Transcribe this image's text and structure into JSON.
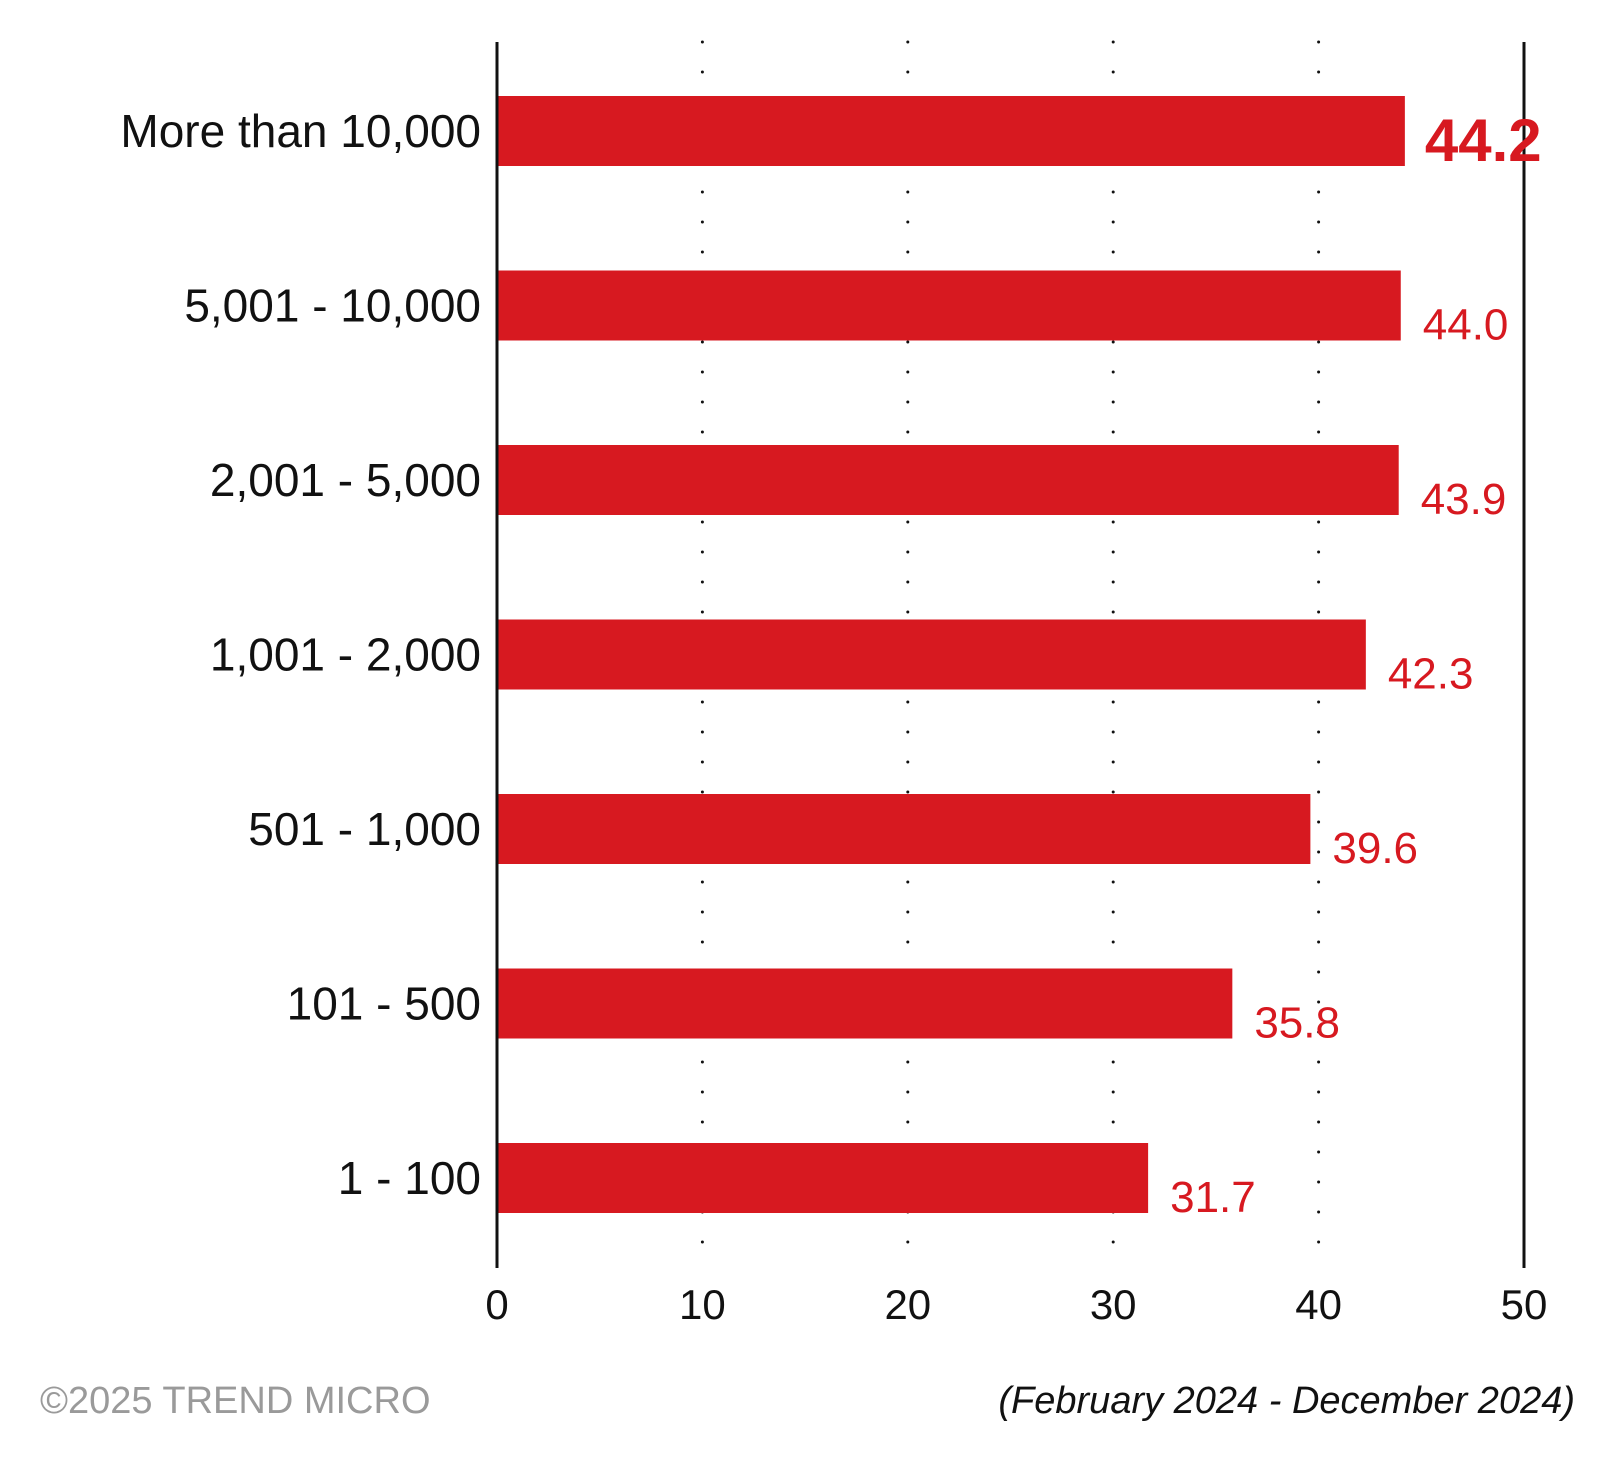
{
  "chart_data": {
    "type": "bar",
    "orientation": "horizontal",
    "categories": [
      "More than 10,000",
      "5,001 - 10,000",
      "2,001 - 5,000",
      "1,001 - 2,000",
      "501 - 1,000",
      "101 - 500",
      "1 - 100"
    ],
    "values": [
      44.2,
      44.0,
      43.9,
      42.3,
      39.6,
      35.8,
      31.7
    ],
    "value_labels": [
      "44.2",
      "44.0",
      "43.9",
      "42.3",
      "39.6",
      "35.8",
      "31.7"
    ],
    "xlim": [
      0,
      50
    ],
    "xticks": [
      0,
      10,
      20,
      30,
      40,
      50
    ],
    "xtick_labels": [
      "0",
      "10",
      "20",
      "30",
      "40",
      "50"
    ],
    "grid": "vertical dotted",
    "legend": "none",
    "bar_color": "#D71920",
    "label_color": "#D71920",
    "emphasized_index": 0
  },
  "footer": {
    "copyright": "©2025 TREND MICRO",
    "period": "(February 2024 - December 2024)"
  }
}
